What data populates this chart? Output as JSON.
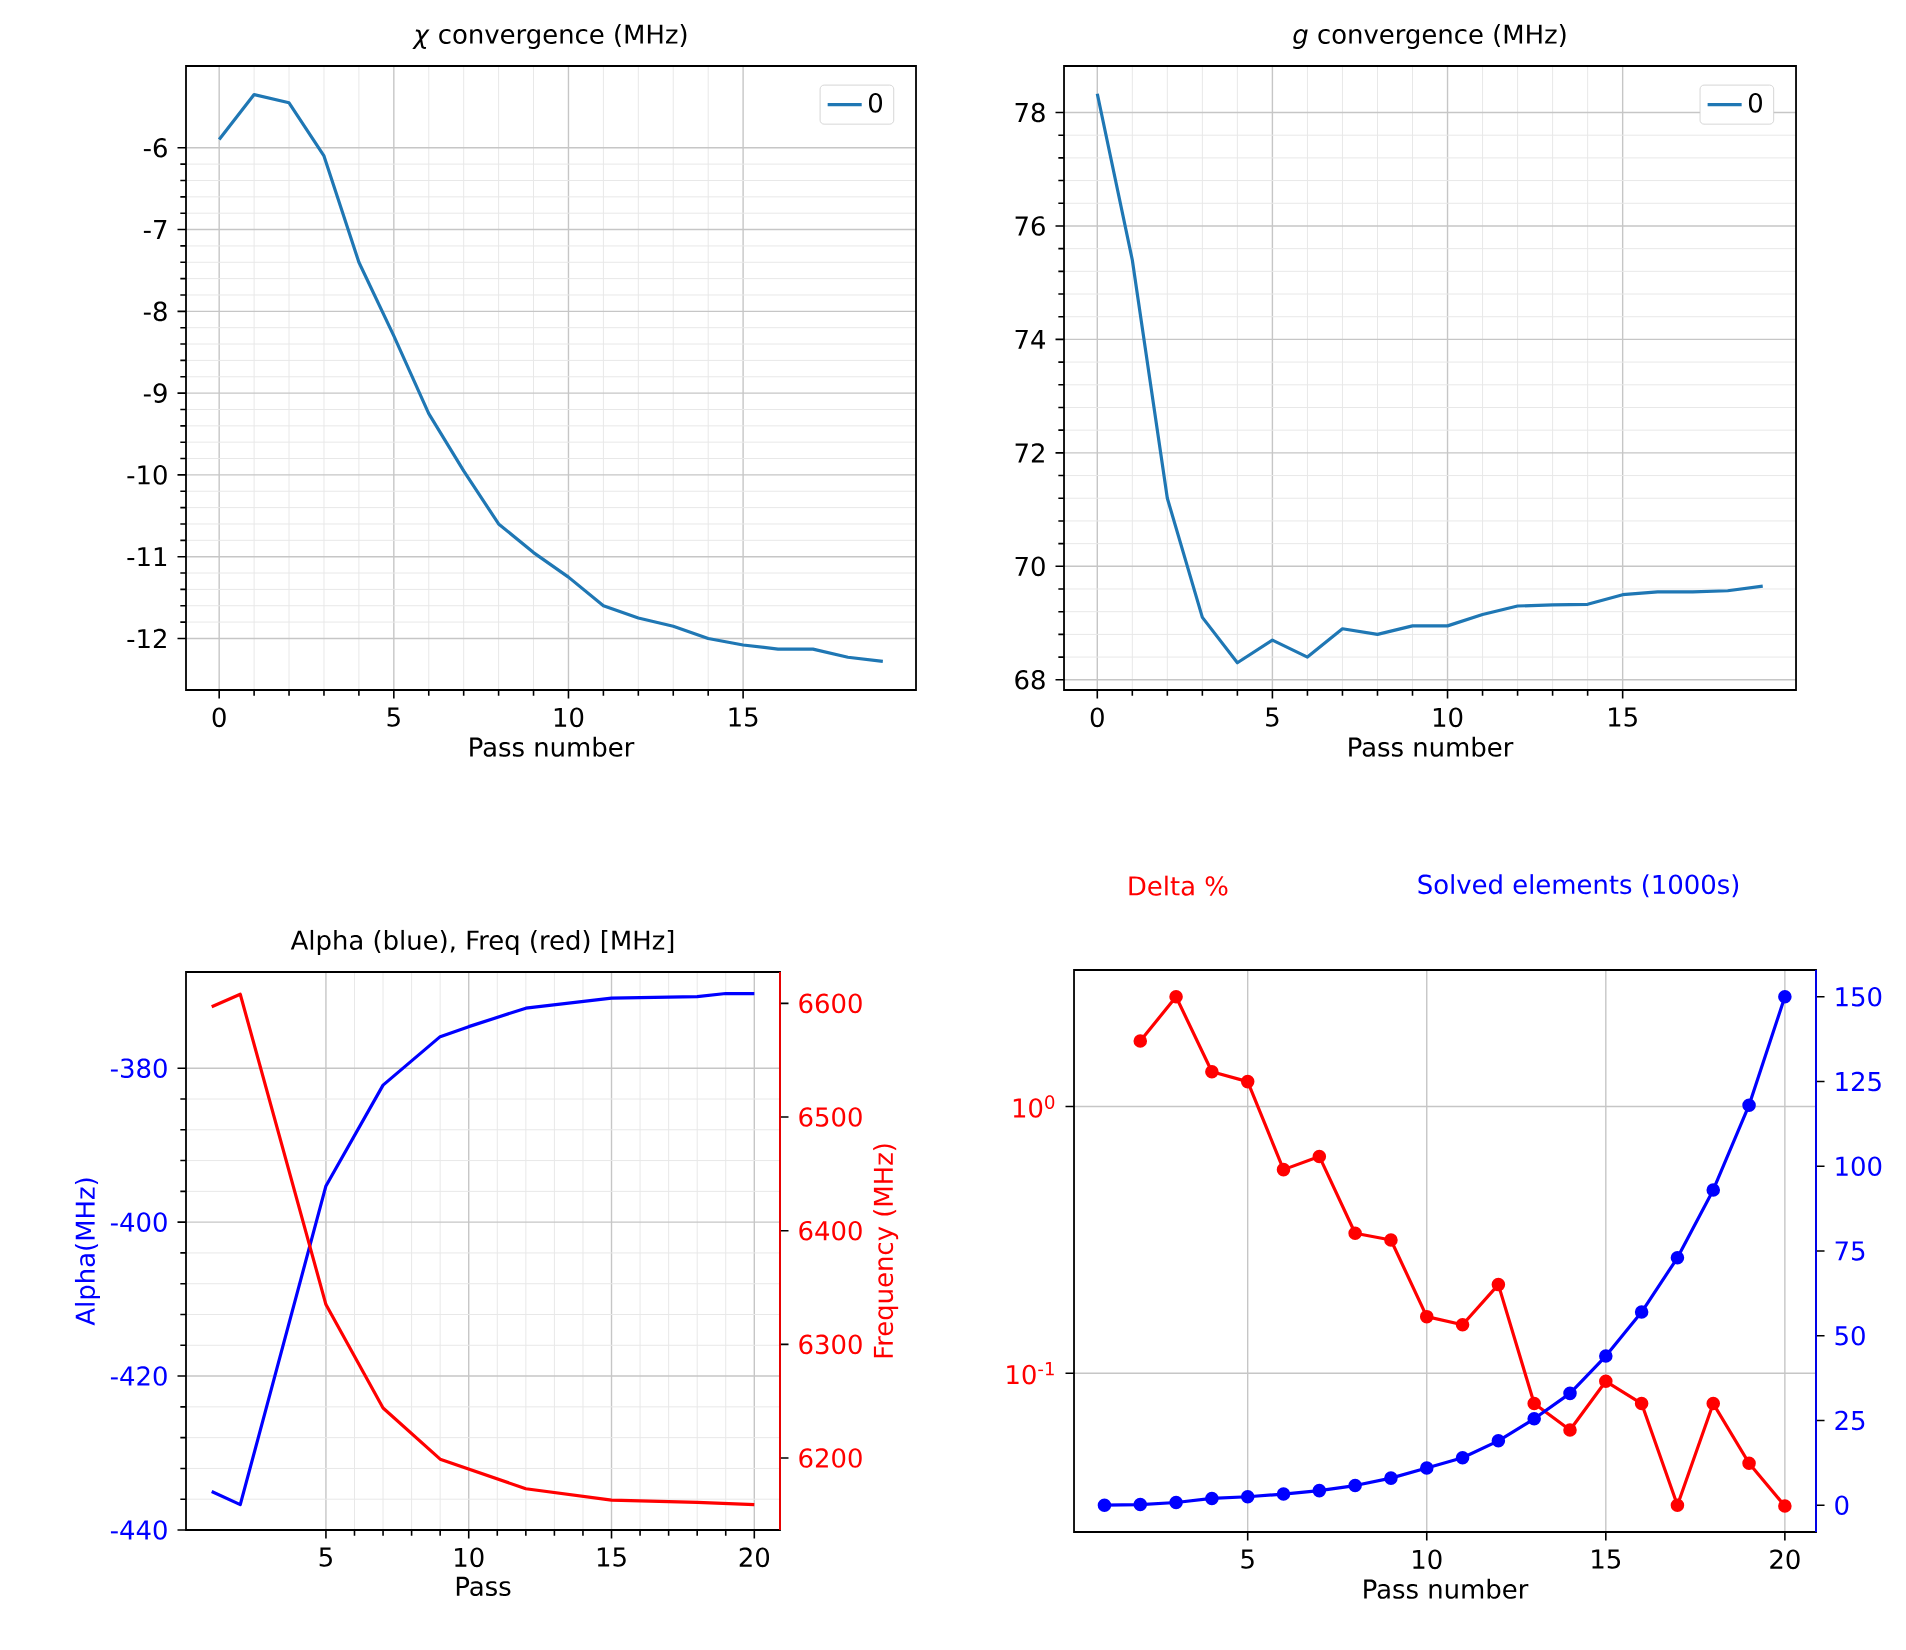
{
  "chart_data": [
    {
      "type": "line",
      "title": "*χ* convergence (MHz)",
      "xlabel": "Pass number",
      "x": [
        0,
        1,
        2,
        3,
        4,
        5,
        6,
        7,
        8,
        9,
        10,
        11,
        12,
        13,
        14,
        15,
        16,
        17,
        18,
        19
      ],
      "series": [
        {
          "name": "0",
          "color": "#1f77b4",
          "values": [
            -5.9,
            -5.35,
            -5.45,
            -6.1,
            -7.4,
            -8.3,
            -9.25,
            -9.95,
            -10.6,
            -10.95,
            -11.25,
            -11.6,
            -11.75,
            -11.85,
            -12.0,
            -12.08,
            -12.13,
            -12.13,
            -12.23,
            -12.28
          ]
        }
      ],
      "xlim": [
        -0.95,
        19.95
      ],
      "ylim": [
        -12.63,
        -5.0
      ],
      "xticks": [
        0,
        5,
        10,
        15
      ],
      "yticks": [
        -12,
        -11,
        -10,
        -9,
        -8,
        -7,
        -6
      ],
      "grid": true,
      "legend": "top right"
    },
    {
      "type": "line",
      "title": "*g* convergence (MHz)",
      "xlabel": "Pass number",
      "x": [
        0,
        1,
        2,
        3,
        4,
        5,
        6,
        7,
        8,
        9,
        10,
        11,
        12,
        13,
        14,
        15,
        16,
        17,
        18,
        19
      ],
      "series": [
        {
          "name": "0",
          "color": "#1f77b4",
          "values": [
            78.33,
            75.4,
            71.2,
            69.1,
            68.3,
            68.7,
            68.4,
            68.9,
            68.8,
            68.95,
            68.95,
            69.15,
            69.3,
            69.32,
            69.33,
            69.5,
            69.55,
            69.55,
            69.57,
            69.65
          ]
        }
      ],
      "xlim": [
        -0.95,
        19.95
      ],
      "ylim": [
        67.82,
        78.82
      ],
      "xticks": [
        0,
        5,
        10,
        15
      ],
      "yticks": [
        68,
        70,
        72,
        74,
        76,
        78
      ],
      "grid": true,
      "legend": "top right"
    },
    {
      "type": "line",
      "title": "Alpha (blue),  Freq (red) [MHz]",
      "xlabel": "Pass",
      "ylabel": "Alpha(MHz)",
      "y2label": "Frequency (MHz)",
      "series": [
        {
          "color": "#0000ff",
          "x": [
            1,
            2,
            5,
            7,
            9,
            10,
            12,
            15,
            18,
            19,
            20
          ],
          "values": [
            -435,
            -436.7,
            -395.3,
            -382.2,
            -375.9,
            -374.6,
            -372.2,
            -370.9,
            -370.7,
            -370.3,
            -370.3
          ]
        },
        {
          "color": "#ff0000",
          "axis": "y2",
          "x": [
            1,
            2,
            5,
            7,
            9,
            12,
            15,
            18,
            20
          ],
          "values": [
            6597,
            6608,
            6335,
            6244,
            6199,
            6173,
            6163,
            6161,
            6159
          ]
        }
      ],
      "xlim": [
        0.1,
        20.9
      ],
      "ylim": [
        -440,
        -367.5
      ],
      "y2lim": [
        6136.7,
        6627.6
      ],
      "xticks": [
        5,
        10,
        15,
        20
      ],
      "yticks": [
        -440,
        -420,
        -400,
        -380
      ],
      "y2ticks": [
        6200,
        6300,
        6400,
        6500,
        6600
      ],
      "grid": true
    },
    {
      "type": "line",
      "ylabel": "Delta %",
      "y2label": "Solved elements (1000s)",
      "log": "y",
      "marker": "circle",
      "series": [
        {
          "color": "#ff0000",
          "x": [
            2,
            3,
            4,
            5,
            6,
            7,
            8,
            9,
            10,
            11,
            12,
            13,
            14,
            15,
            16,
            17,
            18,
            19,
            20
          ],
          "values": [
            1.76,
            2.58,
            1.35,
            1.24,
            0.58,
            0.65,
            0.335,
            0.316,
            0.163,
            0.152,
            0.215,
            0.077,
            0.0613,
            0.0933,
            0.077,
            0.032,
            0.077,
            0.046,
            0.0318
          ]
        },
        {
          "color": "#0000ff",
          "axis": "y2",
          "x": [
            1,
            2,
            3,
            4,
            5,
            6,
            7,
            8,
            9,
            10,
            11,
            12,
            13,
            14,
            15,
            16,
            17,
            18,
            19,
            20
          ],
          "values": [
            0,
            0.2,
            0.8,
            2,
            2.5,
            3.3,
            4.3,
            5.8,
            8,
            11,
            14,
            19,
            25.5,
            33,
            44,
            57,
            73,
            93,
            118,
            150
          ]
        }
      ],
      "xlabel": "Pass number",
      "xlim": [
        0.15,
        20.87
      ],
      "ylim": [
        0.0254,
        3.25
      ],
      "y2lim": [
        -7.9,
        157.9
      ],
      "xticks": [
        5,
        10,
        15,
        20
      ],
      "yticks": [
        {
          "value": 0.1,
          "label": "10$^{-1}$"
        },
        {
          "value": 1,
          "label": "10$^{0}$"
        }
      ],
      "y2ticks": [
        0,
        25,
        50,
        75,
        100,
        125,
        150
      ],
      "grid": true
    }
  ]
}
